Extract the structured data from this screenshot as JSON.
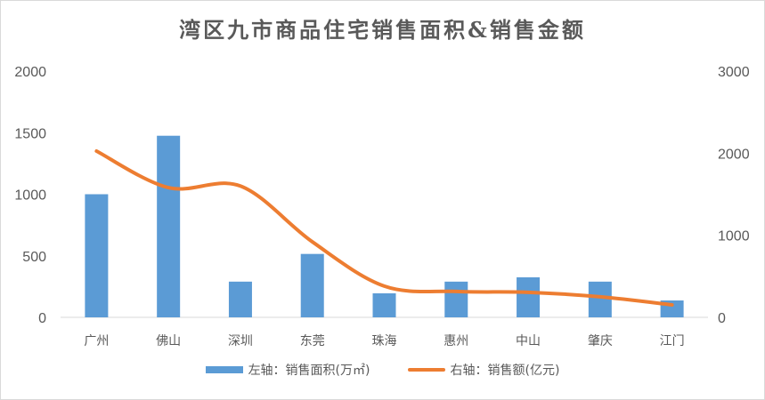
{
  "chart_data": {
    "type": "bar+line",
    "title": "湾区九市商品住宅销售面积&销售金额",
    "categories": [
      "广州",
      "佛山",
      "深圳",
      "东莞",
      "珠海",
      "惠州",
      "中山",
      "肇庆",
      "江门"
    ],
    "series": [
      {
        "name": "左轴：销售面积(万㎡)",
        "type": "bar",
        "axis": "left",
        "color": "#5b9bd5",
        "values": [
          1000,
          1475,
          290,
          515,
          195,
          290,
          325,
          290,
          137
        ]
      },
      {
        "name": "右轴：销售额(亿元)",
        "type": "line",
        "axis": "right",
        "color": "#ed7d31",
        "smooth": true,
        "values": [
          2025,
          1580,
          1600,
          920,
          380,
          315,
          305,
          250,
          152
        ]
      }
    ],
    "left_axis": {
      "ylim": [
        0,
        2000
      ],
      "ticks": [
        "0",
        "500",
        "1000",
        "1500",
        "2000"
      ]
    },
    "right_axis": {
      "ylim": [
        0,
        3000
      ],
      "ticks": [
        "0",
        "1000",
        "2000",
        "3000"
      ]
    },
    "grid": false,
    "legend_position": "bottom"
  },
  "legend": {
    "bar_label": "左轴：销售面积(万㎡)",
    "line_label": "右轴：销售额(亿元)"
  }
}
